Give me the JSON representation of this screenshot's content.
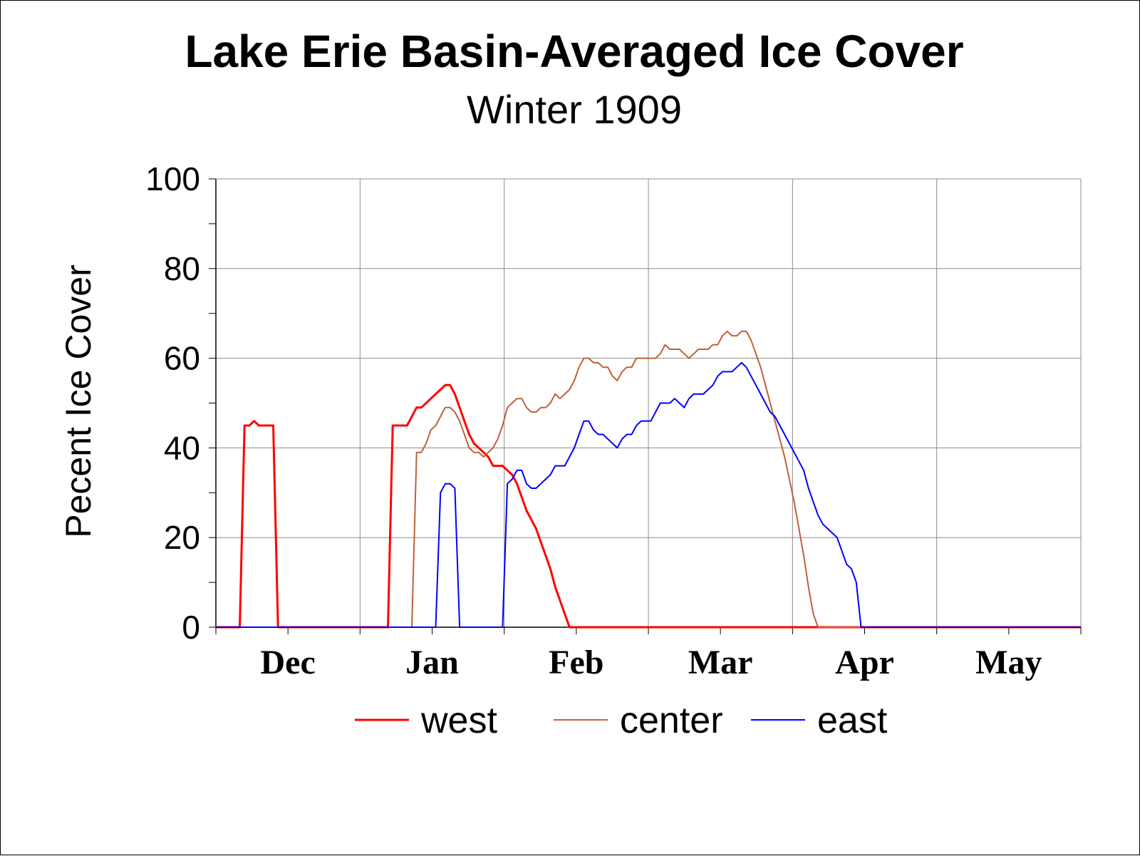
{
  "chart_data": {
    "type": "line",
    "title": "Lake Erie Basin-Averaged Ice Cover",
    "subtitle": "Winter 1909",
    "xlabel": "",
    "ylabel": "Pecent Ice Cover",
    "x_tick_labels": [
      "Dec",
      "Jan",
      "Feb",
      "Mar",
      "Apr",
      "May"
    ],
    "y_tick_labels": [
      "0",
      "20",
      "40",
      "60",
      "80",
      "100"
    ],
    "x_unit": "days from Nov 1",
    "xlim": [
      0,
      181
    ],
    "ylim": [
      0,
      100
    ],
    "grid": true,
    "legend_position": "bottom",
    "series": [
      {
        "name": "west",
        "color": "#ff0000",
        "width": 3,
        "points": [
          [
            0,
            0
          ],
          [
            5,
            0
          ],
          [
            6,
            45
          ],
          [
            7,
            45
          ],
          [
            8,
            46
          ],
          [
            9,
            45
          ],
          [
            10,
            45
          ],
          [
            11,
            45
          ],
          [
            12,
            45
          ],
          [
            13,
            0
          ],
          [
            36,
            0
          ],
          [
            37,
            45
          ],
          [
            38,
            45
          ],
          [
            39,
            45
          ],
          [
            40,
            45
          ],
          [
            41,
            47
          ],
          [
            42,
            49
          ],
          [
            43,
            49
          ],
          [
            44,
            50
          ],
          [
            45,
            51
          ],
          [
            46,
            52
          ],
          [
            47,
            53
          ],
          [
            48,
            54
          ],
          [
            49,
            54
          ],
          [
            50,
            52
          ],
          [
            51,
            49
          ],
          [
            52,
            46
          ],
          [
            53,
            43
          ],
          [
            54,
            41
          ],
          [
            55,
            40
          ],
          [
            56,
            39
          ],
          [
            57,
            38
          ],
          [
            58,
            36
          ],
          [
            59,
            36
          ],
          [
            60,
            36
          ],
          [
            61,
            35
          ],
          [
            62,
            34
          ],
          [
            63,
            32
          ],
          [
            64,
            29
          ],
          [
            65,
            26
          ],
          [
            66,
            24
          ],
          [
            67,
            22
          ],
          [
            68,
            19
          ],
          [
            69,
            16
          ],
          [
            70,
            13
          ],
          [
            71,
            9
          ],
          [
            72,
            6
          ],
          [
            73,
            3
          ],
          [
            74,
            0
          ],
          [
            181,
            0
          ]
        ]
      },
      {
        "name": "center",
        "color": "#c0603a",
        "width": 2,
        "points": [
          [
            0,
            0
          ],
          [
            41,
            0
          ],
          [
            42,
            39
          ],
          [
            43,
            39
          ],
          [
            44,
            41
          ],
          [
            45,
            44
          ],
          [
            46,
            45
          ],
          [
            47,
            47
          ],
          [
            48,
            49
          ],
          [
            49,
            49
          ],
          [
            50,
            48
          ],
          [
            51,
            46
          ],
          [
            52,
            43
          ],
          [
            53,
            40
          ],
          [
            54,
            39
          ],
          [
            55,
            39
          ],
          [
            56,
            38
          ],
          [
            57,
            39
          ],
          [
            58,
            40
          ],
          [
            59,
            42
          ],
          [
            60,
            45
          ],
          [
            61,
            49
          ],
          [
            62,
            50
          ],
          [
            63,
            51
          ],
          [
            64,
            51
          ],
          [
            65,
            49
          ],
          [
            66,
            48
          ],
          [
            67,
            48
          ],
          [
            68,
            49
          ],
          [
            69,
            49
          ],
          [
            70,
            50
          ],
          [
            71,
            52
          ],
          [
            72,
            51
          ],
          [
            73,
            52
          ],
          [
            74,
            53
          ],
          [
            75,
            55
          ],
          [
            76,
            58
          ],
          [
            77,
            60
          ],
          [
            78,
            60
          ],
          [
            79,
            59
          ],
          [
            80,
            59
          ],
          [
            81,
            58
          ],
          [
            82,
            58
          ],
          [
            83,
            56
          ],
          [
            84,
            55
          ],
          [
            85,
            57
          ],
          [
            86,
            58
          ],
          [
            87,
            58
          ],
          [
            88,
            60
          ],
          [
            89,
            60
          ],
          [
            90,
            60
          ],
          [
            91,
            60
          ],
          [
            92,
            60
          ],
          [
            93,
            61
          ],
          [
            94,
            63
          ],
          [
            95,
            62
          ],
          [
            96,
            62
          ],
          [
            97,
            62
          ],
          [
            98,
            61
          ],
          [
            99,
            60
          ],
          [
            100,
            61
          ],
          [
            101,
            62
          ],
          [
            102,
            62
          ],
          [
            103,
            62
          ],
          [
            104,
            63
          ],
          [
            105,
            63
          ],
          [
            106,
            65
          ],
          [
            107,
            66
          ],
          [
            108,
            65
          ],
          [
            109,
            65
          ],
          [
            110,
            66
          ],
          [
            111,
            66
          ],
          [
            112,
            64
          ],
          [
            113,
            61
          ],
          [
            114,
            58
          ],
          [
            115,
            54
          ],
          [
            116,
            50
          ],
          [
            117,
            46
          ],
          [
            118,
            42
          ],
          [
            119,
            38
          ],
          [
            120,
            33
          ],
          [
            121,
            28
          ],
          [
            122,
            22
          ],
          [
            123,
            16
          ],
          [
            124,
            9
          ],
          [
            125,
            3
          ],
          [
            126,
            0
          ],
          [
            181,
            0
          ]
        ]
      },
      {
        "name": "east",
        "color": "#0000ff",
        "width": 2,
        "points": [
          [
            0,
            0
          ],
          [
            46,
            0
          ],
          [
            47,
            30
          ],
          [
            48,
            32
          ],
          [
            49,
            32
          ],
          [
            50,
            31
          ],
          [
            51,
            0
          ],
          [
            60,
            0
          ],
          [
            61,
            32
          ],
          [
            62,
            33
          ],
          [
            63,
            35
          ],
          [
            64,
            35
          ],
          [
            65,
            32
          ],
          [
            66,
            31
          ],
          [
            67,
            31
          ],
          [
            68,
            32
          ],
          [
            69,
            33
          ],
          [
            70,
            34
          ],
          [
            71,
            36
          ],
          [
            72,
            36
          ],
          [
            73,
            36
          ],
          [
            74,
            38
          ],
          [
            75,
            40
          ],
          [
            76,
            43
          ],
          [
            77,
            46
          ],
          [
            78,
            46
          ],
          [
            79,
            44
          ],
          [
            80,
            43
          ],
          [
            81,
            43
          ],
          [
            82,
            42
          ],
          [
            83,
            41
          ],
          [
            84,
            40
          ],
          [
            85,
            42
          ],
          [
            86,
            43
          ],
          [
            87,
            43
          ],
          [
            88,
            45
          ],
          [
            89,
            46
          ],
          [
            90,
            46
          ],
          [
            91,
            46
          ],
          [
            92,
            48
          ],
          [
            93,
            50
          ],
          [
            94,
            50
          ],
          [
            95,
            50
          ],
          [
            96,
            51
          ],
          [
            97,
            50
          ],
          [
            98,
            49
          ],
          [
            99,
            51
          ],
          [
            100,
            52
          ],
          [
            101,
            52
          ],
          [
            102,
            52
          ],
          [
            103,
            53
          ],
          [
            104,
            54
          ],
          [
            105,
            56
          ],
          [
            106,
            57
          ],
          [
            107,
            57
          ],
          [
            108,
            57
          ],
          [
            109,
            58
          ],
          [
            110,
            59
          ],
          [
            111,
            58
          ],
          [
            112,
            56
          ],
          [
            113,
            54
          ],
          [
            114,
            52
          ],
          [
            115,
            50
          ],
          [
            116,
            48
          ],
          [
            117,
            47
          ],
          [
            118,
            45
          ],
          [
            119,
            43
          ],
          [
            120,
            41
          ],
          [
            121,
            39
          ],
          [
            122,
            37
          ],
          [
            123,
            35
          ],
          [
            124,
            31
          ],
          [
            125,
            28
          ],
          [
            126,
            25
          ],
          [
            127,
            23
          ],
          [
            128,
            22
          ],
          [
            129,
            21
          ],
          [
            130,
            20
          ],
          [
            131,
            17
          ],
          [
            132,
            14
          ],
          [
            133,
            13
          ],
          [
            134,
            10
          ],
          [
            135,
            0
          ],
          [
            181,
            0
          ]
        ]
      }
    ]
  }
}
